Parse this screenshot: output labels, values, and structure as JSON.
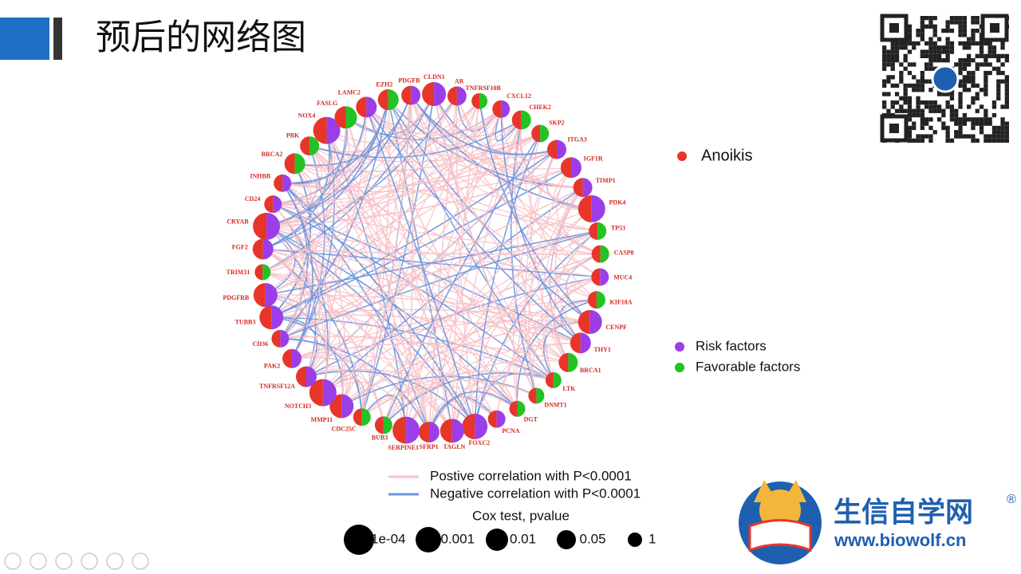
{
  "header": {
    "title": "预后的网络图"
  },
  "legend": {
    "anoikis": {
      "label": "Anoikis",
      "color": "#e8352a"
    },
    "risk": {
      "label": "Risk factors",
      "color": "#9b3ee8"
    },
    "favorable": {
      "label": "Favorable factors",
      "color": "#22c322"
    },
    "positive": {
      "label": "Postive correlation with P<0.0001",
      "color": "#f7c2c8"
    },
    "negative": {
      "label": "Negative correlation with P<0.0001",
      "color": "#6a96e0"
    },
    "cox_title": "Cox test, pvalue",
    "cox_sizes": [
      "1e-04",
      "0.001",
      "0.01",
      "0.05",
      "1"
    ]
  },
  "nodes": [
    {
      "label": "PDGFB",
      "side": "risk"
    },
    {
      "label": "CLDN1",
      "side": "risk"
    },
    {
      "label": "AR",
      "side": "risk"
    },
    {
      "label": "TNFRSF10B",
      "side": "favorable"
    },
    {
      "label": "CXCL12",
      "side": "risk"
    },
    {
      "label": "CHEK2",
      "side": "favorable"
    },
    {
      "label": "SKP2",
      "side": "favorable"
    },
    {
      "label": "ITGA3",
      "side": "risk"
    },
    {
      "label": "IGF1R",
      "side": "risk"
    },
    {
      "label": "TIMP1",
      "side": "risk"
    },
    {
      "label": "PDK4",
      "side": "risk"
    },
    {
      "label": "TP53",
      "side": "favorable"
    },
    {
      "label": "CASP8",
      "side": "favorable"
    },
    {
      "label": "MUC4",
      "side": "risk"
    },
    {
      "label": "KIF18A",
      "side": "favorable"
    },
    {
      "label": "CENPF",
      "side": "risk"
    },
    {
      "label": "THY1",
      "side": "risk"
    },
    {
      "label": "BRCA1",
      "side": "favorable"
    },
    {
      "label": "LTK",
      "side": "favorable"
    },
    {
      "label": "DNMT1",
      "side": "favorable"
    },
    {
      "label": "DGT",
      "side": "favorable"
    },
    {
      "label": "PCNA",
      "side": "risk"
    },
    {
      "label": "FOXC2",
      "side": "risk"
    },
    {
      "label": "TAGLN",
      "side": "risk"
    },
    {
      "label": "SFRP1",
      "side": "risk"
    },
    {
      "label": "SERPINE1",
      "side": "risk"
    },
    {
      "label": "BUB3",
      "side": "favorable"
    },
    {
      "label": "CDC25C",
      "side": "favorable"
    },
    {
      "label": "MMP11",
      "side": "risk"
    },
    {
      "label": "NOTCH3",
      "side": "risk"
    },
    {
      "label": "TNFRSF12A",
      "side": "risk"
    },
    {
      "label": "PAK2",
      "side": "risk"
    },
    {
      "label": "CD36",
      "side": "risk"
    },
    {
      "label": "TUBB3",
      "side": "risk"
    },
    {
      "label": "PDGFRB",
      "side": "risk"
    },
    {
      "label": "TRIM31",
      "side": "favorable"
    },
    {
      "label": "FGF2",
      "side": "risk"
    },
    {
      "label": "CRYAB",
      "side": "risk"
    },
    {
      "label": "CD24",
      "side": "risk"
    },
    {
      "label": "INHBB",
      "side": "risk"
    },
    {
      "label": "BRCA2",
      "side": "favorable"
    },
    {
      "label": "PBK",
      "side": "favorable"
    },
    {
      "label": "NOX4",
      "side": "risk"
    },
    {
      "label": "FASLG",
      "side": "favorable"
    },
    {
      "label": "LAMC2",
      "side": "risk"
    },
    {
      "label": "EZH2",
      "side": "favorable"
    }
  ],
  "logo": {
    "name": "生信自学网",
    "url": "www.biowolf.cn",
    "mark": "®"
  }
}
